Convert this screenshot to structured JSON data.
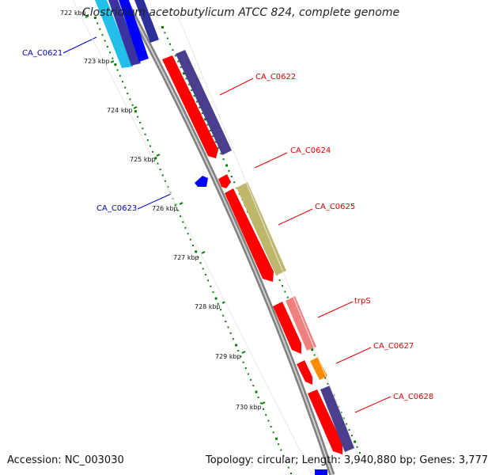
{
  "map": {
    "title": "Clostridium acetobutylicum ATCC 824, complete genome",
    "accession": "Accession: NC_003030",
    "stats": "Topology: circular; Length: 3,940,880 bp; Genes: 3,777",
    "ruler": [
      "722 kbp",
      "723 kbp",
      "724 kbp",
      "725 kbp",
      "726 kbp",
      "727 kbp",
      "728 kbp",
      "729 kbp",
      "730 kbp"
    ],
    "genes": [
      {
        "name": "CA_C0621",
        "color": "#0000cc"
      },
      {
        "name": "CA_C0622",
        "color": "#e00000"
      },
      {
        "name": "CA_C0623",
        "color": "#0000cc"
      },
      {
        "name": "CA_C0624",
        "color": "#e00000"
      },
      {
        "name": "CA_C0625",
        "color": "#e00000"
      },
      {
        "name": "trpS",
        "color": "#e00000"
      },
      {
        "name": "CA_C0627",
        "color": "#e00000"
      },
      {
        "name": "CA_C0628",
        "color": "#e00000"
      }
    ],
    "colors": {
      "cds_forward": "#ff0000",
      "cds_reverse": "#0000ff",
      "cyan_feature": "#22c0e8",
      "purple_feature": "#4a3f8c",
      "olive_feature": "#bdb76b",
      "pink_feature": "#f08080",
      "orange_feature": "#ff8c00",
      "backbone": "#808080",
      "tick": "#008000"
    }
  }
}
